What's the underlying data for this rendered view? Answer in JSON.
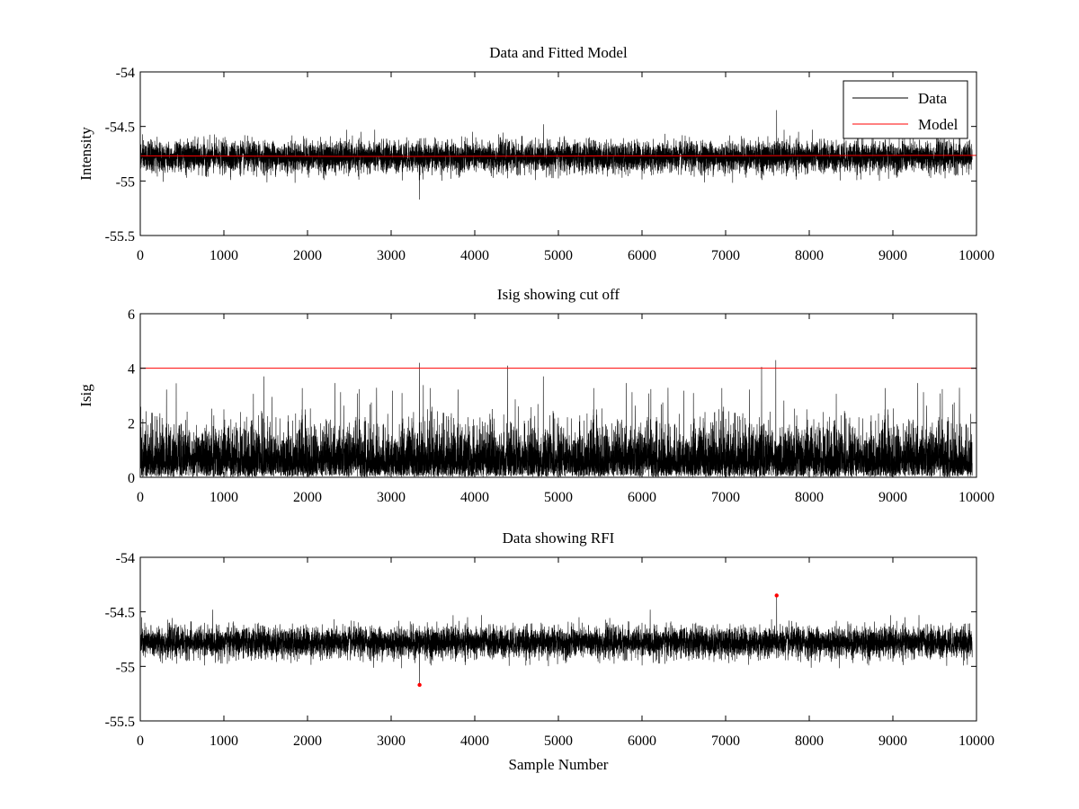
{
  "chart_data": [
    {
      "type": "line",
      "title": "Data and Fitted Model",
      "xlabel": "",
      "ylabel": "Intensity",
      "xlim": [
        0,
        10000
      ],
      "ylim": [
        -55.5,
        -54
      ],
      "xticks": [
        0,
        1000,
        2000,
        3000,
        4000,
        5000,
        6000,
        7000,
        8000,
        9000,
        10000
      ],
      "yticks": [
        -54,
        -54.5,
        -55,
        -55.5
      ],
      "xtick_labels": [
        "0",
        "1000",
        "2000",
        "3000",
        "4000",
        "5000",
        "6000",
        "7000",
        "8000",
        "9000",
        "10000"
      ],
      "ytick_labels": [
        "-54",
        "-54.5",
        "-55",
        "-55.5"
      ],
      "legend": {
        "position": "top-right",
        "entries": [
          {
            "label": "Data",
            "color": "#000000"
          },
          {
            "label": "Model",
            "color": "#ff0000"
          }
        ]
      },
      "series": [
        {
          "name": "Data",
          "kind": "noise",
          "color": "#000000",
          "n": 9950,
          "mean": -54.78,
          "spread": 0.07
        },
        {
          "name": "Model",
          "kind": "line",
          "color": "#ff0000",
          "x": [
            0,
            2800,
            3300,
            5700,
            10000
          ],
          "y": [
            -54.77,
            -54.775,
            -54.775,
            -54.77,
            -54.765
          ]
        }
      ]
    },
    {
      "type": "line",
      "title": "Isig showing cut off",
      "xlabel": "",
      "ylabel": "Isig",
      "xlim": [
        0,
        10000
      ],
      "ylim": [
        0,
        6
      ],
      "xticks": [
        0,
        1000,
        2000,
        3000,
        4000,
        5000,
        6000,
        7000,
        8000,
        9000,
        10000
      ],
      "yticks": [
        0,
        2,
        4,
        6
      ],
      "xtick_labels": [
        "0",
        "1000",
        "2000",
        "3000",
        "4000",
        "5000",
        "6000",
        "7000",
        "8000",
        "9000",
        "10000"
      ],
      "ytick_labels": [
        "0",
        "2",
        "4",
        "6"
      ],
      "series": [
        {
          "name": "Isig",
          "kind": "abs-noise",
          "color": "#000000",
          "n": 9950,
          "spikes": [
            [
              3340,
              4.2
            ],
            [
              7600,
              4.3
            ],
            [
              7430,
              4.05
            ],
            [
              4820,
              3.7
            ],
            [
              1480,
              3.7
            ],
            [
              430,
              3.45
            ]
          ]
        },
        {
          "name": "Cut off",
          "kind": "line",
          "color": "#ff0000",
          "x": [
            0,
            10000
          ],
          "y": [
            4,
            4
          ]
        }
      ]
    },
    {
      "type": "line",
      "title": "Data showing RFI",
      "xlabel": "Sample Number",
      "ylabel": "",
      "xlim": [
        0,
        10000
      ],
      "ylim": [
        -55.5,
        -54
      ],
      "xticks": [
        0,
        1000,
        2000,
        3000,
        4000,
        5000,
        6000,
        7000,
        8000,
        9000,
        10000
      ],
      "yticks": [
        -54,
        -54.5,
        -55,
        -55.5
      ],
      "xtick_labels": [
        "0",
        "1000",
        "2000",
        "3000",
        "4000",
        "5000",
        "6000",
        "7000",
        "8000",
        "9000",
        "10000"
      ],
      "ytick_labels": [
        "-54",
        "-54.5",
        "-55",
        "-55.5"
      ],
      "series": [
        {
          "name": "Data",
          "kind": "noise",
          "color": "#000000",
          "n": 9950,
          "mean": -54.78,
          "spread": 0.07
        },
        {
          "name": "RFI",
          "kind": "points",
          "color": "#ff0000",
          "x": [
            3340,
            7610
          ],
          "y": [
            -55.17,
            -54.35
          ]
        }
      ]
    }
  ]
}
